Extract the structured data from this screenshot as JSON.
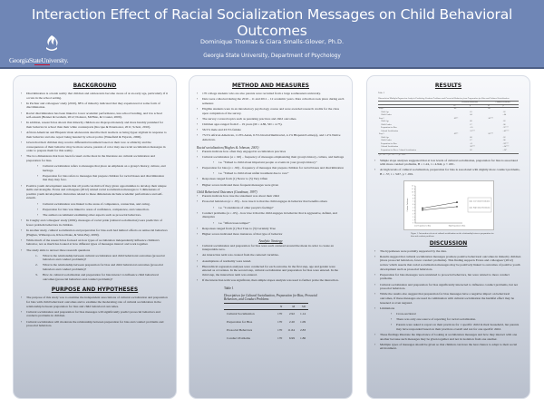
{
  "header": {
    "title": "Interaction Effect of Racial Socialization Messages on Child Behavioral Outcomes",
    "authors": "Dominique Thomas & Ciara Smalls-Glover, Ph.D.",
    "affiliation": "Georgia State University, Department of Psychology",
    "logo_text": "GeorgiaStateUniversity.",
    "logo_icon": "flame-icon",
    "colors": {
      "banner": "#6f86b6",
      "logo_accent": "#c8102e"
    }
  },
  "background": {
    "heading": "BACKGROUND",
    "bullets": [
      "Discrimination is a harsh reality that children and adolescents become aware of at an early age, particularly if it occurs in the school setting.",
      "In Pachter and colleagues' study (2010), 88% of minority indicated that they experienced at some form of discrimination.",
      "Racial discrimination has been linked to lower academic performance, less school bonding, and low school self-esteem (Benner & Graham, 2012; Dotterer, McHale, & Crouter, 2009).",
      "In addition, research has shown that minority children are disproportionately and more harshly punished for their behavior in school than their white counterparts (Rocque & Paternoster, 2011; Schott, 2010).",
      "African American and Hispanic male adolescents describe their teachers as being hyper-vigilant in response to their behavior and also report being hassled by school police (Wakefield & Fajardo, 2006).",
      "Given that their children may receive differential treatment based on their race or ethnicity and the consequences of their behavior may be more severe, parents of color may use racial socialization messages in order to prepare them for this reality.",
      "The two dimensions that have been focused on the most in the literature are cultural socialization and preparation for bias."
    ],
    "sub_bullets_1": [
      "Cultural socialization refers to messages that place an emphasis on a group's history, culture, and heritage.",
      "Preparation for bias refers to messages that prepare children for racial biases and discrimination that they may face."
    ],
    "bullet_pyd": "Positive youth development asserts that all youth can thrive if they given opportunities to develop their unique skills and strengths. Evans and colleagues (2012) related racial socialization messages to 5 dimensions of positive youth development. Outcomes related to these dimensions include academic performance and self-esteem.",
    "sub_bullets_2": [
      "Cultural socialization was linked to the areas of competence, connection, and caring.",
      "Preparation for bias was linked to areas of confidence, competence, and connection.",
      "The authors recommend examining other aspects such as prosocial behaviors."
    ],
    "bullets_after": [
      "In Caughy and colleagues' study (2002), messages of racial pride (cultural socialization) were predictive of fewer problem behaviors in children.",
      "In another study, cultural socialization and preparation for bias each had indirect effects on antisocial behaviors (Hughes, Witherspoon, Rivas-Drake, & West-Bey, 2009).",
      "While much of the research has focused on how types of socialization independently influence children's behavior, not as much has looked at how different types of messages interact and work together.",
      "The study aims to answer three research questions"
    ],
    "questions": [
      "What is the relationship between cultural socialization and child behavioral outcomes (prosocial behaviors and conduct problems)?",
      "What is the relationship between preparation for bias and child behavioral outcomes (prosocial behaviors and conduct problems)?",
      "How do cultural socialization and preparation for bias interact to influence child behavioral outcomes (prosocial behaviors and conduct problems)?"
    ]
  },
  "purpose": {
    "heading": "PURPOSE AND HYPOTHESES",
    "bullets": [
      "The purpose of this study was to examine the independent associations of cultural socialization and preparation for bias with child behavioral outcomes and to examine the moderating role of cultural socialization in the relationship between preparation for bias and child behavioral outcomes.",
      "Cultural socialization and preparation for bias messages will significantly predict prosocial behaviors and conducts problems in children.",
      "Cultural socialization will moderate the relationship between preparation for bias and conduct problems and prosocial behaviors."
    ]
  },
  "method": {
    "heading": "METHOD AND MEASURES",
    "bullets": [
      "170 college students who are also parents were recruited from a large southeastern university.",
      "Data were collected during the 2010 – 11 and 2011 – 12 academic years. Data collection took place during each semester.",
      "Eligible students were in an introductory psychology course and were awarded research credits for the class upon completion of the survey.",
      "The survey covered topics such as parenting practices and child outcomes.",
      "Children ages ranged from 0 – 19 years (M = 4.86, SD = 4.75).",
      "56.5% male and 43.5% female",
      "73.5% African American, 11.8% Asian, 6.5% biracial/multiracial, 4.1% Hispanic/Latino(a), and 1.2% Native American."
    ],
    "racial_label": "Racial socialization (Hughes & Johnson, 2001)",
    "racial_bullets": [
      "Parents indicate how often they engaged in socialization practices",
      "Cultural socialization (α = .90) – frequency of messages emphasizing their group's history, culture, and heritage",
      "i.e. “Talked to child about important people or events in your group's history”",
      "Preparation for bias (α = .90) – frequency of messages that prepare children for racial biases and discrimination",
      "i.e. “Talked to child about unfair treatment due to race”",
      "Responses ranged from (1) Never to (5) Very Often",
      "Higher scores indicated more frequent messages were given"
    ],
    "child_label": "Child Behavioral Outcomes (Goodman, 1997)",
    "child_bullets": [
      "Parents indicate how true the statement was about their child",
      "Prosocial behaviors (α = .85) – how true it is that the child engages in behavior that benefits others",
      "i.e. “Considerate of other people's feelings”",
      "Conduct problems (α = .65) – how true it that the child engages in behavior that is aggressive, defiant, and disruptive",
      "i.e. “Often loses temper”",
      "Responses ranged from (1) Not True to (3) Certainly True",
      "Higher scores indicated more instances of that type of behavior"
    ],
    "analytic_heading": "Analytic Strategy",
    "analytic_bullets": [
      "Cultural socialization and preparation for bias were each centered around the mean in order to create an interpretable zero.",
      "An interaction term was created from the centered variables.",
      "Assumptions of normality were tested.",
      "Hierarchical regression analyses were conducted for each outcome. In the first step, age and gender were entered as covariates. In the second step, cultural socialization and preparation for bias were entered. In the third step, the interaction term was entered.",
      "If the interaction term was significant, then simple slopes analysis was used to further probe the interaction."
    ],
    "table": {
      "caption": "Table 1",
      "title": "Descriptives for Cultural Socialization, Preparation for Bias, Prosocial Behaviors, and Conduct Problems",
      "columns": [
        "",
        "N",
        "M",
        "SD"
      ],
      "rows": [
        [
          "Cultural Socialization",
          "170",
          "2.92",
          "1.14"
        ],
        [
          "Preparation for Bias",
          "170",
          "2.20",
          "1.09"
        ],
        [
          "Prosocial Behaviors",
          "170",
          "11.64",
          "2.83"
        ],
        [
          "Conduct Problems",
          "170",
          "6.99",
          "1.86"
        ]
      ]
    }
  },
  "results": {
    "heading": "RESULTS",
    "table": {
      "caption": "Table 2",
      "title": "Hierarchical Multiple Regression Analysis Predicting Conduct Problems and Prosocial Behavior from Preparation for Bias and Cultural Socialization",
      "group_headers": [
        "Prosocial Behaviors",
        "Conduct Problems"
      ],
      "columns": [
        "",
        "R²",
        "β",
        "R²",
        "β"
      ],
      "rows": [
        [
          "Step 1",
          ".00",
          "",
          ".00",
          ""
        ],
        [
          "  Child Age",
          "",
          ".01",
          "",
          ".02"
        ],
        [
          "  Child Gender",
          "",
          ".04",
          "",
          "-.04"
        ],
        [
          "Step 2",
          ".09**",
          "",
          ".16***",
          ""
        ],
        [
          "  Child Age",
          "",
          ".00",
          "",
          ".02"
        ],
        [
          "  Child Gender",
          "",
          ".17",
          "",
          ".06"
        ],
        [
          "  Preparation for Bias",
          "",
          "-.10",
          "",
          ".31***"
        ],
        [
          "  Cultural Socialization",
          "",
          ".31***",
          "",
          "-.42***"
        ],
        [
          "Step 3",
          ".09**",
          "",
          ".20***",
          ""
        ],
        [
          "  Child Age",
          "",
          ".00",
          "",
          ".02"
        ],
        [
          "  Child Gender",
          "",
          ".17",
          "",
          ".06"
        ],
        [
          "  Preparation for Bias",
          "",
          "-.11",
          "",
          ".30***"
        ],
        [
          "  Cultural Socialization",
          "",
          ".30***",
          "",
          "-.34***"
        ],
        [
          "  Preparation for Bias x Cultural Socialization",
          "",
          ".02",
          "",
          "-.20*"
        ]
      ],
      "note": "* p < .05. ** p < .01. *** p < .001."
    },
    "bullets": [
      "Simple slope analyses suggested that at low levels of cultural socialization, preparation for bias is associated with more conduct problems, B = 1.24, t = 4.942, p < .001.",
      "At high levels of cultural socialization, preparation for bias is associated with slightly more conduct problems, B = .57, t = 3.67, p < .001."
    ],
    "figure_caption": "Figure 1. Interaction effects of cultural socialization on the relationship between preparation for bias and conduct problems."
  },
  "chart_data": {
    "type": "line",
    "title": "",
    "xlabel": "",
    "ylabel": "Conduct Problems",
    "categories": [
      "Low Preparation for Bias",
      "High Preparation for Bias"
    ],
    "ylim": [
      0,
      12
    ],
    "yticks": [
      0,
      1,
      2,
      3,
      4,
      5,
      6,
      7,
      8,
      9,
      10,
      11,
      12
    ],
    "series": [
      {
        "name": "Low Cultural Socialization",
        "values": [
          4.8,
          6.7
        ]
      },
      {
        "name": "High Cultural Socialization",
        "values": [
          4.2,
          5.3
        ]
      }
    ],
    "legend_position": "right",
    "grid": false
  },
  "discussion": {
    "heading": "DISCUSSION",
    "bullets": [
      "The hypotheses were partially supported by the data.",
      "Results suggest that cultural socialization messages promote positive behavioral outcomes in minority children (more prosocial behaviors, fewer conduct problems). This finding supports Evans and colleagues' (2012) review which asserts that racial socialization messages may be positively linked to outcomes of positive youth development such as prosocial behaviors.",
      "Preparation for bias messages were unrelated to prosocial behaviors, but were related to more conduct problems.",
      "Cultural socialization and preparation for bias significantly interacted to influence conduct problems, but not prosocial behaviors.",
      "While the results also suggest that preparation for bias messages have a negative impact on behavioral outcomes, if these messages are used in combination with cultural socialization the harmful effect may be lessened or even negated.",
      "Limitations"
    ],
    "limitations": [
      "Cross-sectional",
      "There was only one source of reporting for racial socialization.",
      "Parents were asked to report on their practices for 1 specific child in their household, but parents may have responded based on their practices overall and not for one specific child."
    ],
    "bullets_after": [
      "These findings illustrate the importance of looking at socialization messages and how they interact with one another because such messages may be given together and not in isolation from one another.",
      "Multiple types of messages should be given so that children can have the best chance to adapt to their social environment."
    ]
  }
}
